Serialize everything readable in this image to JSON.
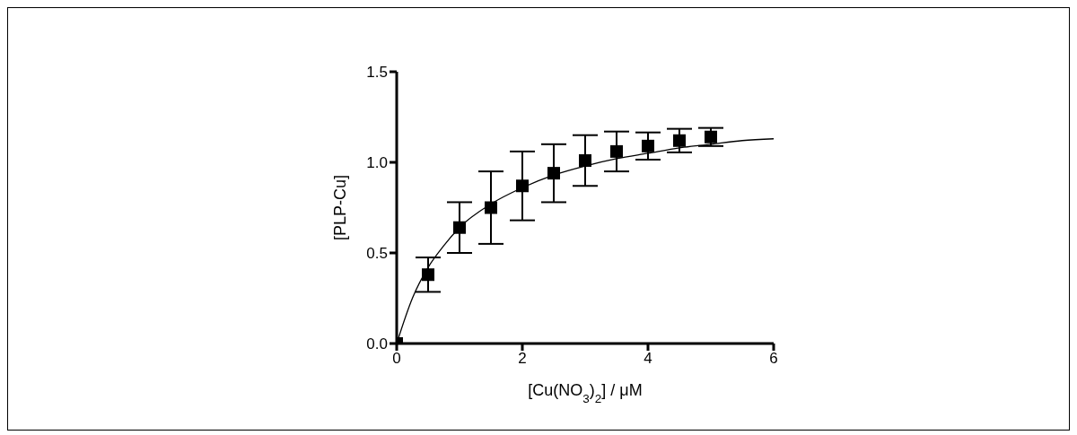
{
  "chart_data": {
    "type": "scatter",
    "xlabel": "[Cu(NO$_{3}$)$_{2}$] / μM",
    "ylabel": "[PLP-Cu]",
    "x": [
      0,
      0.5,
      1,
      1.5,
      2,
      2.5,
      3,
      3.5,
      4,
      4.5,
      5
    ],
    "xlim": [
      0,
      6
    ],
    "xticks": [
      0,
      2,
      4,
      6
    ],
    "ylim": [
      0,
      1.5
    ],
    "yticks": [
      {
        "value": 0,
        "label": "0.0"
      },
      0.5,
      {
        "value": 1,
        "label": "1.0"
      },
      1.5
    ],
    "series": [
      {
        "marker": "square",
        "color": "#000000",
        "values": [
          0,
          0.38,
          0.64,
          0.75,
          0.87,
          0.94,
          1.01,
          1.06,
          1.09,
          1.12,
          1.14
        ],
        "errors": [
          null,
          0.095,
          0.14,
          0.2,
          0.19,
          0.16,
          0.14,
          0.11,
          0.075,
          0.065,
          0.05
        ]
      },
      {
        "type": "line",
        "color": "#000000",
        "line_style": "solid",
        "marker": "none",
        "x": [
          0,
          0.25,
          0.5,
          0.75,
          1,
          1.5,
          2,
          2.5,
          3,
          3.5,
          4,
          4.5,
          5,
          5.5,
          6
        ],
        "values": [
          0,
          0.25,
          0.42,
          0.54,
          0.64,
          0.77,
          0.86,
          0.93,
          0.98,
          1.02,
          1.05,
          1.08,
          1.1,
          1.12,
          1.13
        ]
      }
    ]
  }
}
